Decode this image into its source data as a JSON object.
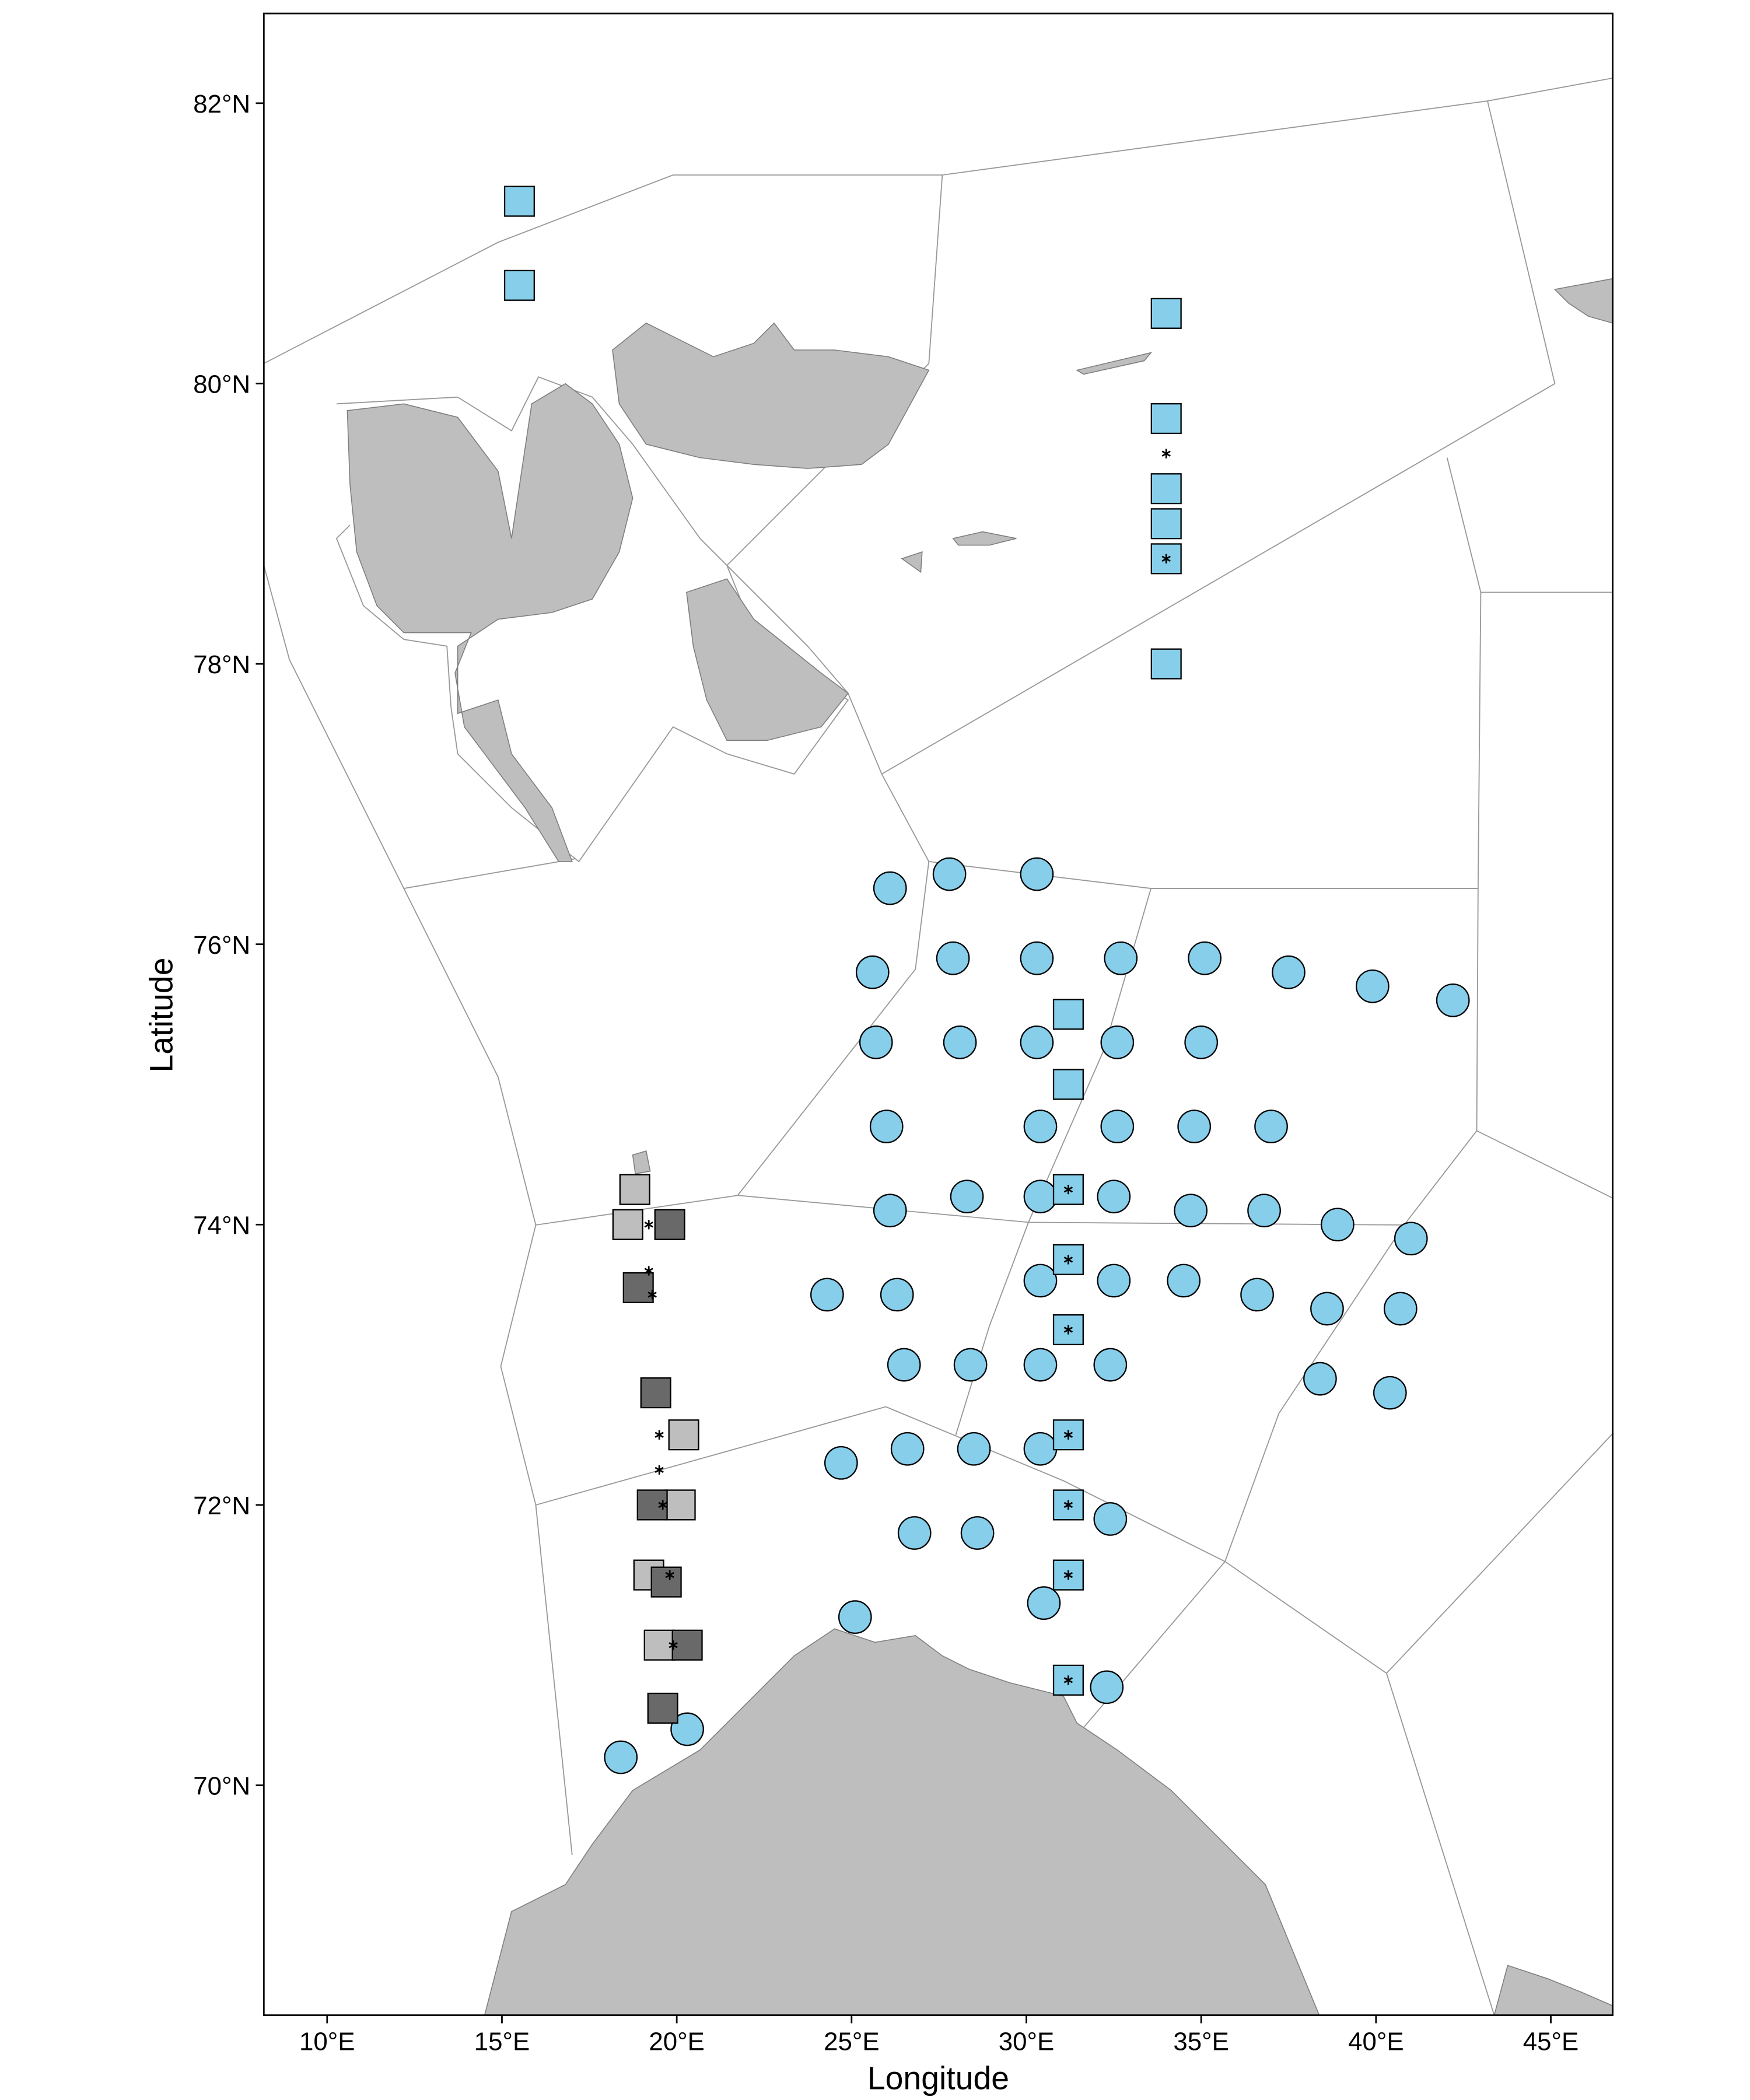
{
  "chart_data": {
    "type": "scatter",
    "x_label": "Longitude",
    "y_label": "Latitude",
    "xlim": [
      8.19,
      46.77
    ],
    "ylim": [
      68.36,
      82.64
    ],
    "xticks": [
      {
        "value": 10,
        "label": "10°E"
      },
      {
        "value": 15,
        "label": "15°E"
      },
      {
        "value": 20,
        "label": "20°E"
      },
      {
        "value": 25,
        "label": "25°E"
      },
      {
        "value": 30,
        "label": "30°E"
      },
      {
        "value": 35,
        "label": "35°E"
      },
      {
        "value": 40,
        "label": "40°E"
      },
      {
        "value": 45,
        "label": "45°E"
      }
    ],
    "yticks": [
      {
        "value": 70,
        "label": "70°N"
      },
      {
        "value": 72,
        "label": "72°N"
      },
      {
        "value": 74,
        "label": "74°N"
      },
      {
        "value": 76,
        "label": "76°N"
      },
      {
        "value": 78,
        "label": "78°N"
      },
      {
        "value": 80,
        "label": "80°N"
      },
      {
        "value": 82,
        "label": "82°N"
      }
    ],
    "grid": false,
    "series": [
      {
        "marker": "circle",
        "color": "#87ceeb",
        "x": [
          26.1,
          27.8,
          30.3,
          25.6,
          27.9,
          30.3,
          32.7,
          35.1,
          37.5,
          39.9,
          42.2,
          25.7,
          28.1,
          30.3,
          32.6,
          35.0,
          26.0,
          30.4,
          32.6,
          34.8,
          37.0,
          26.1,
          28.3,
          30.4,
          32.5,
          34.7,
          36.8,
          38.9,
          41.0,
          24.3,
          26.3,
          30.4,
          32.5,
          34.5,
          36.6,
          38.6,
          40.7,
          26.5,
          28.4,
          30.4,
          32.4,
          38.4,
          40.4,
          24.7,
          26.6,
          28.5,
          30.4,
          26.8,
          28.6,
          32.4,
          30.5,
          25.1,
          32.3,
          20.3,
          18.4
        ],
        "y": [
          76.4,
          76.5,
          76.5,
          75.8,
          75.9,
          75.9,
          75.9,
          75.9,
          75.8,
          75.7,
          75.6,
          75.3,
          75.3,
          75.3,
          75.3,
          75.3,
          74.7,
          74.7,
          74.7,
          74.7,
          74.7,
          74.1,
          74.2,
          74.2,
          74.2,
          74.1,
          74.1,
          74.0,
          73.9,
          73.5,
          73.5,
          73.6,
          73.6,
          73.6,
          73.5,
          73.4,
          73.4,
          73.0,
          73.0,
          73.0,
          73.0,
          72.9,
          72.8,
          72.3,
          72.4,
          72.4,
          72.4,
          71.8,
          71.8,
          71.9,
          71.3,
          71.2,
          70.7,
          70.4,
          70.2
        ]
      },
      {
        "marker": "square",
        "color": "#87ceeb",
        "x": [
          15.5,
          15.5,
          34.0,
          34.0,
          34.0,
          34.0,
          34.0,
          34.0,
          31.2,
          31.2,
          31.2,
          31.2,
          31.2,
          31.2,
          31.2,
          31.2,
          31.2
        ],
        "y": [
          81.3,
          80.7,
          80.5,
          79.75,
          79.25,
          79.0,
          78.75,
          78.0,
          75.5,
          75.0,
          74.25,
          73.75,
          73.25,
          72.5,
          72.0,
          71.5,
          70.75
        ]
      },
      {
        "marker": "square",
        "color": "#bebebe",
        "x": [
          18.8,
          18.6,
          20.2,
          20.1,
          19.2,
          19.5
        ],
        "y": [
          74.25,
          74.0,
          72.5,
          72.0,
          71.5,
          71.0
        ]
      },
      {
        "marker": "square",
        "color": "#696969",
        "x": [
          19.8,
          18.9,
          19.4,
          19.3,
          19.7,
          20.3,
          19.6
        ],
        "y": [
          74.0,
          73.55,
          72.8,
          72.0,
          71.45,
          71.0,
          70.55
        ]
      },
      {
        "marker": "asterisk",
        "color": "#000000",
        "x": [
          34.0,
          34.0,
          31.2,
          31.2,
          31.2,
          31.2,
          31.2,
          31.2,
          31.2,
          19.2,
          19.2,
          19.3,
          19.5,
          19.5,
          19.6,
          19.8,
          19.9
        ],
        "y": [
          79.5,
          78.75,
          74.25,
          73.75,
          73.25,
          72.5,
          72.0,
          71.5,
          70.75,
          74.0,
          73.67,
          73.5,
          72.5,
          72.25,
          72.0,
          71.5,
          71.0
        ]
      }
    ]
  }
}
